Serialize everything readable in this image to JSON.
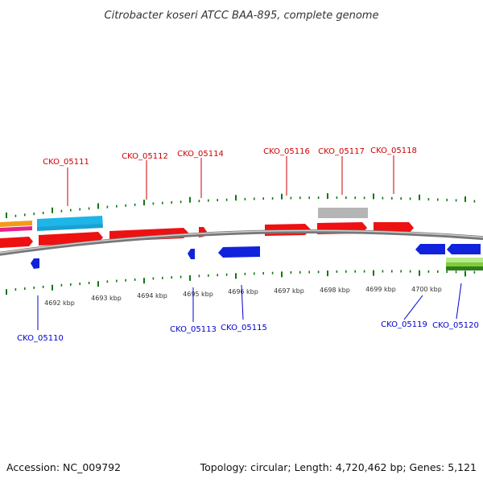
{
  "title": "Citrobacter koseri ATCC BAA-895, complete genome",
  "footer": {
    "accession": "Accession: NC_009792",
    "info": "Topology: circular; Length: 4,720,462 bp; Genes: 5,121"
  },
  "colors": {
    "forward_gene": "#ee1111",
    "reverse_gene": "#1122dd",
    "label_forward": "#cc0000",
    "label_reverse": "#0000cc",
    "ticks": "#117711",
    "backbone": "#888888"
  },
  "scale_labels": [
    "4692 kbp",
    "4693 kbp",
    "4694 kbp",
    "4695 kbp",
    "4696 kbp",
    "4697 kbp",
    "4698 kbp",
    "4699 kbp",
    "4700 kbp"
  ],
  "forward_labels": [
    "CKO_05111",
    "CKO_05112",
    "CKO_05114",
    "CKO_05116",
    "CKO_05117",
    "CKO_05118"
  ],
  "reverse_labels": [
    "CKO_05110",
    "CKO_05113",
    "CKO_05115",
    "CKO_05119",
    "CKO_05120"
  ]
}
